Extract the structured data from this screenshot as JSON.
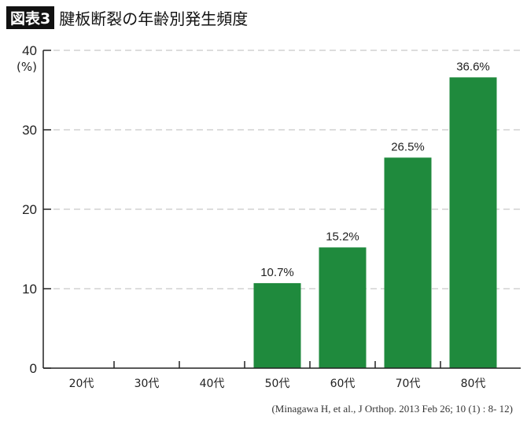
{
  "header": {
    "badge": "図表3",
    "title": "腱板断裂の年齢別発生頻度"
  },
  "source": "(Minagawa H, et al., J Orthop. 2013 Feb 26; 10 (1) : 8- 12)",
  "chart_data": {
    "type": "bar",
    "title": "腱板断裂の年齢別発生頻度",
    "categories": [
      "20代",
      "30代",
      "40代",
      "50代",
      "60代",
      "70代",
      "80代"
    ],
    "values": [
      0,
      0,
      0,
      10.7,
      15.2,
      26.5,
      36.6
    ],
    "data_labels": [
      "",
      "",
      "",
      "10.7%",
      "15.2%",
      "26.5%",
      "36.6%"
    ],
    "ylabel": "(%)",
    "ylim": [
      0,
      40
    ],
    "yticks": [
      0,
      10,
      20,
      30,
      40
    ],
    "grid": true,
    "bar_color": "#1f8a3d"
  }
}
